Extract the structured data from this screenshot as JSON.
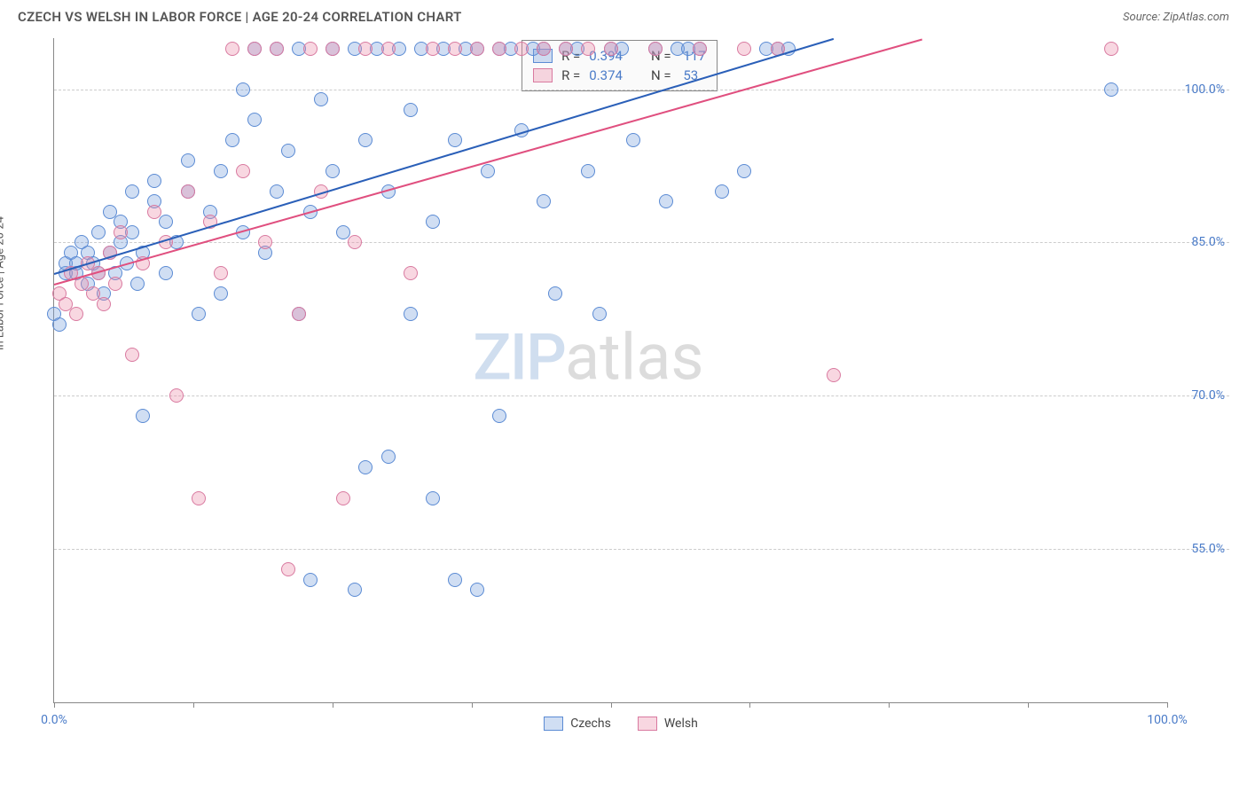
{
  "title": "CZECH VS WELSH IN LABOR FORCE | AGE 20-24 CORRELATION CHART",
  "source_label": "Source: ZipAtlas.com",
  "ylabel": "In Labor Force | Age 20-24",
  "watermark_zip": "ZIP",
  "watermark_atlas": "atlas",
  "chart": {
    "type": "scatter",
    "xlim": [
      0,
      100
    ],
    "ylim": [
      40,
      105
    ],
    "yticks": [
      55.0,
      70.0,
      85.0,
      100.0
    ],
    "ytick_labels": [
      "55.0%",
      "70.0%",
      "85.0%",
      "100.0%"
    ],
    "xticks": [
      0,
      12.5,
      25,
      37.5,
      50,
      62.5,
      75,
      87.5,
      100
    ],
    "xtick_labels": {
      "0": "0.0%",
      "100": "100.0%"
    },
    "background_color": "#ffffff",
    "grid_color": "#cccccc",
    "axis_color": "#888888",
    "series": [
      {
        "name": "Czechs",
        "fill": "rgba(120,160,220,0.35)",
        "stroke": "#5b8bd4",
        "trend_color": "#2a5fb8",
        "R": "0.394",
        "N": "117",
        "trend": {
          "x1": 0,
          "y1": 82,
          "x2": 70,
          "y2": 105
        },
        "points": [
          [
            0,
            78
          ],
          [
            0.5,
            77
          ],
          [
            1,
            82
          ],
          [
            1,
            83
          ],
          [
            1.5,
            84
          ],
          [
            2,
            82
          ],
          [
            2,
            83
          ],
          [
            2.5,
            85
          ],
          [
            3,
            81
          ],
          [
            3,
            84
          ],
          [
            3.5,
            83
          ],
          [
            4,
            82
          ],
          [
            4,
            86
          ],
          [
            4.5,
            80
          ],
          [
            5,
            84
          ],
          [
            5,
            88
          ],
          [
            5.5,
            82
          ],
          [
            6,
            85
          ],
          [
            6,
            87
          ],
          [
            6.5,
            83
          ],
          [
            7,
            86
          ],
          [
            7,
            90
          ],
          [
            7.5,
            81
          ],
          [
            8,
            84
          ],
          [
            8,
            68
          ],
          [
            9,
            89
          ],
          [
            9,
            91
          ],
          [
            10,
            82
          ],
          [
            10,
            87
          ],
          [
            11,
            85
          ],
          [
            12,
            90
          ],
          [
            12,
            93
          ],
          [
            13,
            78
          ],
          [
            14,
            88
          ],
          [
            15,
            80
          ],
          [
            15,
            92
          ],
          [
            16,
            95
          ],
          [
            17,
            86
          ],
          [
            17,
            100
          ],
          [
            18,
            104
          ],
          [
            18,
            97
          ],
          [
            19,
            84
          ],
          [
            20,
            104
          ],
          [
            20,
            90
          ],
          [
            21,
            94
          ],
          [
            22,
            104
          ],
          [
            22,
            78
          ],
          [
            23,
            88
          ],
          [
            23,
            52
          ],
          [
            24,
            99
          ],
          [
            25,
            104
          ],
          [
            25,
            92
          ],
          [
            26,
            86
          ],
          [
            27,
            51
          ],
          [
            27,
            104
          ],
          [
            28,
            95
          ],
          [
            28,
            63
          ],
          [
            29,
            104
          ],
          [
            30,
            64
          ],
          [
            30,
            90
          ],
          [
            31,
            104
          ],
          [
            32,
            98
          ],
          [
            32,
            78
          ],
          [
            33,
            104
          ],
          [
            34,
            87
          ],
          [
            34,
            60
          ],
          [
            35,
            104
          ],
          [
            36,
            52
          ],
          [
            36,
            95
          ],
          [
            37,
            104
          ],
          [
            38,
            51
          ],
          [
            38,
            104
          ],
          [
            39,
            92
          ],
          [
            40,
            104
          ],
          [
            40,
            68
          ],
          [
            41,
            104
          ],
          [
            42,
            96
          ],
          [
            43,
            104
          ],
          [
            44,
            89
          ],
          [
            44,
            104
          ],
          [
            45,
            80
          ],
          [
            46,
            104
          ],
          [
            47,
            104
          ],
          [
            48,
            92
          ],
          [
            49,
            78
          ],
          [
            50,
            104
          ],
          [
            51,
            104
          ],
          [
            52,
            95
          ],
          [
            54,
            104
          ],
          [
            55,
            89
          ],
          [
            56,
            104
          ],
          [
            57,
            104
          ],
          [
            58,
            104
          ],
          [
            60,
            90
          ],
          [
            62,
            92
          ],
          [
            64,
            104
          ],
          [
            65,
            104
          ],
          [
            66,
            104
          ],
          [
            95,
            100
          ]
        ]
      },
      {
        "name": "Welsh",
        "fill": "rgba(235,140,170,0.35)",
        "stroke": "#d97aa0",
        "trend_color": "#e04f7f",
        "R": "0.374",
        "N": "53",
        "trend": {
          "x1": 0,
          "y1": 81,
          "x2": 78,
          "y2": 105
        },
        "points": [
          [
            0.5,
            80
          ],
          [
            1,
            79
          ],
          [
            1.5,
            82
          ],
          [
            2,
            78
          ],
          [
            2.5,
            81
          ],
          [
            3,
            83
          ],
          [
            3.5,
            80
          ],
          [
            4,
            82
          ],
          [
            4.5,
            79
          ],
          [
            5,
            84
          ],
          [
            5.5,
            81
          ],
          [
            6,
            86
          ],
          [
            7,
            74
          ],
          [
            8,
            83
          ],
          [
            9,
            88
          ],
          [
            10,
            85
          ],
          [
            11,
            70
          ],
          [
            12,
            90
          ],
          [
            13,
            60
          ],
          [
            14,
            87
          ],
          [
            15,
            82
          ],
          [
            16,
            104
          ],
          [
            17,
            92
          ],
          [
            18,
            104
          ],
          [
            19,
            85
          ],
          [
            20,
            104
          ],
          [
            21,
            53
          ],
          [
            22,
            78
          ],
          [
            23,
            104
          ],
          [
            24,
            90
          ],
          [
            25,
            104
          ],
          [
            26,
            60
          ],
          [
            27,
            85
          ],
          [
            28,
            104
          ],
          [
            30,
            104
          ],
          [
            32,
            82
          ],
          [
            34,
            104
          ],
          [
            36,
            104
          ],
          [
            38,
            104
          ],
          [
            40,
            104
          ],
          [
            42,
            104
          ],
          [
            44,
            104
          ],
          [
            46,
            104
          ],
          [
            48,
            104
          ],
          [
            50,
            104
          ],
          [
            54,
            104
          ],
          [
            58,
            104
          ],
          [
            62,
            104
          ],
          [
            65,
            104
          ],
          [
            70,
            72
          ],
          [
            95,
            104
          ]
        ]
      }
    ]
  },
  "legend_box": {
    "rows": [
      {
        "swatch_fill": "rgba(120,160,220,0.35)",
        "swatch_stroke": "#5b8bd4",
        "r_label": "R =",
        "r_val": "0.394",
        "n_label": "N =",
        "n_val": "117"
      },
      {
        "swatch_fill": "rgba(235,140,170,0.35)",
        "swatch_stroke": "#d97aa0",
        "r_label": "R =",
        "r_val": "0.374",
        "n_label": "N =",
        "n_val": "53"
      }
    ]
  },
  "bottom_legend": [
    {
      "swatch_fill": "rgba(120,160,220,0.35)",
      "swatch_stroke": "#5b8bd4",
      "label": "Czechs"
    },
    {
      "swatch_fill": "rgba(235,140,170,0.35)",
      "swatch_stroke": "#d97aa0",
      "label": "Welsh"
    }
  ]
}
